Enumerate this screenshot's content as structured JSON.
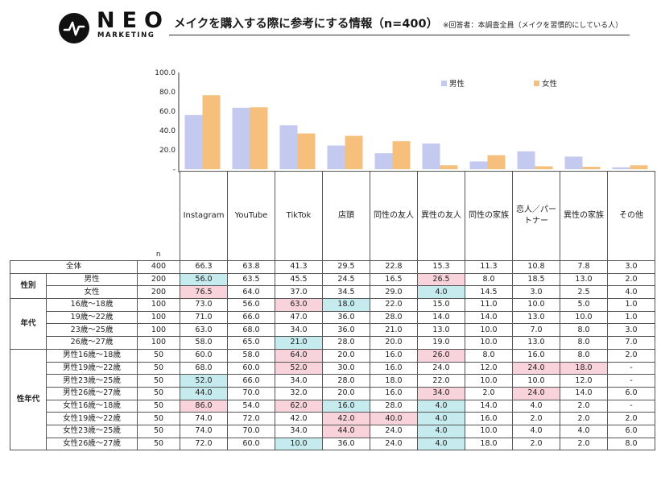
{
  "header": {
    "logo_main": "NEO",
    "logo_sub": "MARKETING",
    "title": "メイクを購入する際に参考にする情報（n=400）",
    "note": "※回答者：本調査全員（メイクを習慣的にしている人）"
  },
  "colors": {
    "male": "#c3c9ef",
    "female": "#f7bf7c",
    "pink": "#f8d3dc",
    "cyan": "#c5ebee"
  },
  "chart_data": {
    "type": "bar",
    "categories": [
      "Instagram",
      "YouTube",
      "TikTok",
      "店頭",
      "同性の友人",
      "異性の友人",
      "同性の家族",
      "恋人／パートナー",
      "異性の家族",
      "その他"
    ],
    "series": [
      {
        "name": "男性",
        "values": [
          56.0,
          63.5,
          45.5,
          24.5,
          16.5,
          26.5,
          8.0,
          18.5,
          13.0,
          2.0
        ]
      },
      {
        "name": "女性",
        "values": [
          76.5,
          64.0,
          37.0,
          34.5,
          29.0,
          4.0,
          14.5,
          3.0,
          2.5,
          4.0
        ]
      }
    ],
    "y_ticks": [
      "100.0",
      "80.0",
      "60.0",
      "40.0",
      "20.0",
      "-"
    ],
    "ylim": [
      0,
      100
    ],
    "legend": [
      "男性",
      "女性"
    ]
  },
  "table": {
    "n_header": "n",
    "columns": [
      "Instagram",
      "YouTube",
      "TikTok",
      "店頭",
      "同性の友人",
      "異性の友人",
      "同性の家族",
      "恋人／パートナー",
      "異性の家族",
      "その他"
    ],
    "rows": [
      {
        "group": "",
        "label": "全体",
        "n": "400",
        "values": [
          "66.3",
          "63.8",
          "41.3",
          "29.5",
          "22.8",
          "15.3",
          "11.3",
          "10.8",
          "7.8",
          "3.0"
        ]
      },
      {
        "group": "性別",
        "label": "男性",
        "n": "200",
        "values": [
          "56.0",
          "63.5",
          "45.5",
          "24.5",
          "16.5",
          "26.5",
          "8.0",
          "18.5",
          "13.0",
          "2.0"
        ]
      },
      {
        "group": "性別",
        "label": "女性",
        "n": "200",
        "values": [
          "76.5",
          "64.0",
          "37.0",
          "34.5",
          "29.0",
          "4.0",
          "14.5",
          "3.0",
          "2.5",
          "4.0"
        ]
      },
      {
        "group": "年代",
        "label": "16歳～18歳",
        "n": "100",
        "values": [
          "73.0",
          "56.0",
          "63.0",
          "18.0",
          "22.0",
          "15.0",
          "11.0",
          "10.0",
          "5.0",
          "1.0"
        ]
      },
      {
        "group": "年代",
        "label": "19歳～22歳",
        "n": "100",
        "values": [
          "71.0",
          "66.0",
          "47.0",
          "36.0",
          "28.0",
          "14.0",
          "14.0",
          "13.0",
          "10.0",
          "1.0"
        ]
      },
      {
        "group": "年代",
        "label": "23歳～25歳",
        "n": "100",
        "values": [
          "63.0",
          "68.0",
          "34.0",
          "36.0",
          "21.0",
          "13.0",
          "10.0",
          "7.0",
          "8.0",
          "3.0"
        ]
      },
      {
        "group": "年代",
        "label": "26歳～27歳",
        "n": "100",
        "values": [
          "58.0",
          "65.0",
          "21.0",
          "28.0",
          "20.0",
          "19.0",
          "10.0",
          "13.0",
          "8.0",
          "7.0"
        ]
      },
      {
        "group": "性年代",
        "label": "男性16歳～18歳",
        "n": "50",
        "values": [
          "60.0",
          "58.0",
          "64.0",
          "20.0",
          "16.0",
          "26.0",
          "8.0",
          "16.0",
          "8.0",
          "2.0"
        ]
      },
      {
        "group": "性年代",
        "label": "男性19歳～22歳",
        "n": "50",
        "values": [
          "68.0",
          "60.0",
          "52.0",
          "30.0",
          "16.0",
          "24.0",
          "12.0",
          "24.0",
          "18.0",
          "-"
        ]
      },
      {
        "group": "性年代",
        "label": "男性23歳～25歳",
        "n": "50",
        "values": [
          "52.0",
          "66.0",
          "34.0",
          "28.0",
          "18.0",
          "22.0",
          "10.0",
          "10.0",
          "12.0",
          "-"
        ]
      },
      {
        "group": "性年代",
        "label": "男性26歳～27歳",
        "n": "50",
        "values": [
          "44.0",
          "70.0",
          "32.0",
          "20.0",
          "16.0",
          "34.0",
          "2.0",
          "24.0",
          "14.0",
          "6.0"
        ]
      },
      {
        "group": "性年代",
        "label": "女性16歳～18歳",
        "n": "50",
        "values": [
          "86.0",
          "54.0",
          "62.0",
          "16.0",
          "28.0",
          "4.0",
          "14.0",
          "4.0",
          "2.0",
          "-"
        ]
      },
      {
        "group": "性年代",
        "label": "女性19歳～22歳",
        "n": "50",
        "values": [
          "74.0",
          "72.0",
          "42.0",
          "42.0",
          "40.0",
          "4.0",
          "16.0",
          "2.0",
          "2.0",
          "2.0"
        ]
      },
      {
        "group": "性年代",
        "label": "女性23歳～25歳",
        "n": "50",
        "values": [
          "74.0",
          "70.0",
          "34.0",
          "44.0",
          "24.0",
          "4.0",
          "10.0",
          "4.0",
          "4.0",
          "6.0"
        ]
      },
      {
        "group": "性年代",
        "label": "女性26歳～27歳",
        "n": "50",
        "values": [
          "72.0",
          "60.0",
          "10.0",
          "36.0",
          "24.0",
          "4.0",
          "18.0",
          "2.0",
          "2.0",
          "8.0"
        ]
      }
    ],
    "highlights": [
      {
        "row": 1,
        "col": 0,
        "tone": "cyan"
      },
      {
        "row": 1,
        "col": 5,
        "tone": "pink"
      },
      {
        "row": 2,
        "col": 0,
        "tone": "pink"
      },
      {
        "row": 2,
        "col": 5,
        "tone": "cyan"
      },
      {
        "row": 3,
        "col": 2,
        "tone": "pink"
      },
      {
        "row": 3,
        "col": 3,
        "tone": "cyan"
      },
      {
        "row": 6,
        "col": 2,
        "tone": "cyan"
      },
      {
        "row": 7,
        "col": 2,
        "tone": "pink"
      },
      {
        "row": 7,
        "col": 5,
        "tone": "pink"
      },
      {
        "row": 8,
        "col": 2,
        "tone": "pink"
      },
      {
        "row": 8,
        "col": 7,
        "tone": "pink"
      },
      {
        "row": 8,
        "col": 8,
        "tone": "pink"
      },
      {
        "row": 9,
        "col": 0,
        "tone": "cyan"
      },
      {
        "row": 10,
        "col": 0,
        "tone": "cyan"
      },
      {
        "row": 10,
        "col": 5,
        "tone": "pink"
      },
      {
        "row": 10,
        "col": 7,
        "tone": "pink"
      },
      {
        "row": 11,
        "col": 0,
        "tone": "pink"
      },
      {
        "row": 11,
        "col": 2,
        "tone": "pink"
      },
      {
        "row": 11,
        "col": 3,
        "tone": "cyan"
      },
      {
        "row": 11,
        "col": 5,
        "tone": "cyan"
      },
      {
        "row": 12,
        "col": 3,
        "tone": "pink"
      },
      {
        "row": 12,
        "col": 4,
        "tone": "pink"
      },
      {
        "row": 12,
        "col": 5,
        "tone": "cyan"
      },
      {
        "row": 13,
        "col": 3,
        "tone": "pink"
      },
      {
        "row": 13,
        "col": 5,
        "tone": "cyan"
      },
      {
        "row": 14,
        "col": 2,
        "tone": "cyan"
      },
      {
        "row": 14,
        "col": 5,
        "tone": "cyan"
      }
    ]
  }
}
